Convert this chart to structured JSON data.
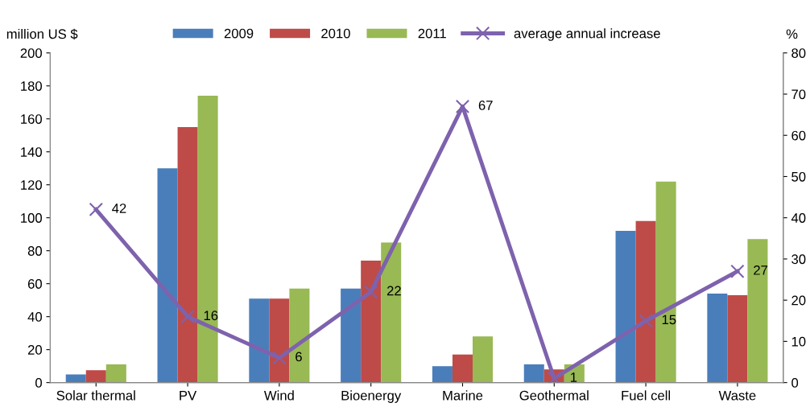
{
  "chart_data": {
    "type": "bar",
    "ylabel": "million US $",
    "y2label": "%",
    "categories": [
      "Solar thermal",
      "PV",
      "Wind",
      "Bioenergy",
      "Marine",
      "Geothermal",
      "Fuel cell",
      "Waste"
    ],
    "series": [
      {
        "name": "2009",
        "color": "#4a7ebb",
        "values": [
          5,
          130,
          51,
          57,
          10,
          11,
          92,
          54
        ]
      },
      {
        "name": "2010",
        "color": "#be4b48",
        "values": [
          7.5,
          155,
          51,
          74,
          17,
          8,
          98,
          53
        ]
      },
      {
        "name": "2011",
        "color": "#98b954",
        "values": [
          11,
          174,
          57,
          85,
          28,
          11,
          122,
          87
        ]
      },
      {
        "name": "average annual increase",
        "type": "line",
        "axis": "y2",
        "color": "#7e62ad",
        "marker": "cross",
        "values": [
          42,
          16,
          6,
          22,
          67,
          1,
          15,
          27
        ],
        "value_labels": [
          "42",
          "16",
          "6",
          "22",
          "67",
          "1",
          "15",
          "27"
        ]
      }
    ],
    "ylim": [
      0,
      200
    ],
    "yticks": [
      0,
      20,
      40,
      60,
      80,
      100,
      120,
      140,
      160,
      180,
      200
    ],
    "y2lim": [
      0,
      80
    ],
    "y2ticks": [
      0,
      10,
      20,
      30,
      40,
      50,
      60,
      70,
      80
    ],
    "legend": "top",
    "grid": false
  }
}
